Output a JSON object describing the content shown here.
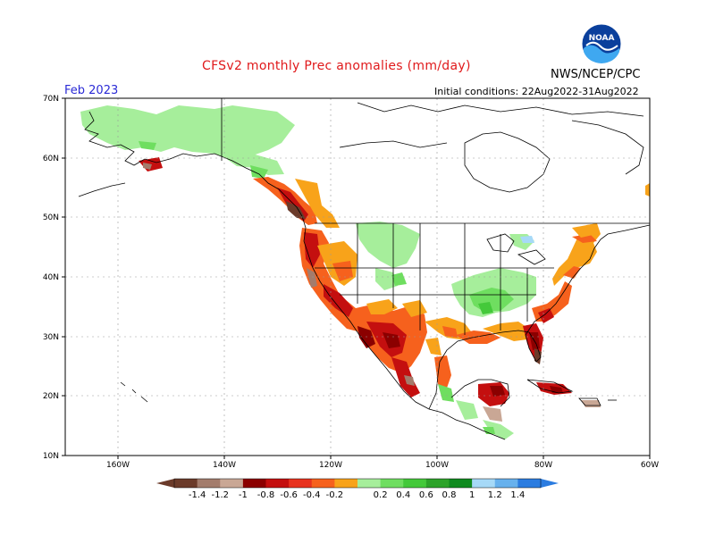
{
  "header": {
    "title": "CFSv2 monthly Prec anomalies (mm/day)",
    "agency": "NWS/NCEP/CPC",
    "logo_text": "NOAA",
    "month": "Feb 2023",
    "initial_conditions": "Initial conditions: 22Aug2022-31Aug2022"
  },
  "axes": {
    "lat_labels": [
      "70N",
      "60N",
      "50N",
      "40N",
      "30N",
      "20N",
      "10N"
    ],
    "lon_labels": [
      "160W",
      "140W",
      "120W",
      "100W",
      "80W",
      "60W"
    ]
  },
  "colorbar": {
    "labels": [
      "-1.4",
      "-1.2",
      "-1",
      "-0.8",
      "-0.6",
      "-0.4",
      "-0.2",
      "0.2",
      "0.4",
      "0.6",
      "0.8",
      "1",
      "1.2",
      "1.4"
    ],
    "colors": [
      "#6b3b2a",
      "#a37c6c",
      "#c9a795",
      "#8b0000",
      "#c40f0f",
      "#e8321e",
      "#f6611d",
      "#f8a31a",
      "#a6ee9b",
      "#6fde60",
      "#44c93a",
      "#2da32a",
      "#0f8a1f",
      "#a6d9f7",
      "#67b1ed",
      "#2b7ce0"
    ],
    "min_color": "#6b3b2a",
    "max_color": "#2b7ce0"
  },
  "colors": {
    "title": "#e0191b",
    "month": "#2a2ad6",
    "dry_strong": "#8b0000",
    "dry_mod": "#e8321e",
    "dry_weak": "#f8a31a",
    "wet_weak": "#a6ee9b",
    "wet_mod": "#44c93a",
    "very_dry": "#6b3b2a"
  }
}
